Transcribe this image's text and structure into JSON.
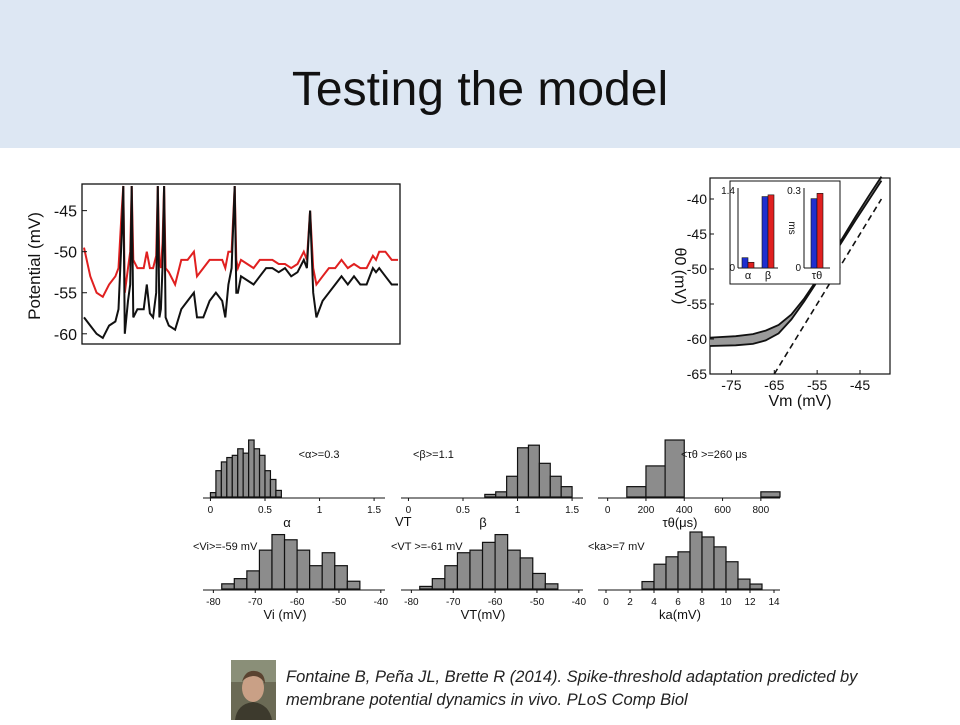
{
  "slide": {
    "title": "Testing the model",
    "citation_line1": "Fontaine B, Peña JL, Brette R (2014). Spike-threshold adaptation predicted by",
    "citation_line2": "membrane potential dynamics in vivo. PLoS Comp Biol"
  },
  "colors": {
    "band": "#dde7f3",
    "red": "#e02020",
    "black": "#111111",
    "blue": "#1f2fd0",
    "bar_gray": "#8c8c8c"
  },
  "chart_data": [
    {
      "id": "voltage-trace",
      "type": "line",
      "ylabel": "Potential (mV)",
      "ylim": [
        -61,
        -42
      ],
      "y_ticks": [
        "-45",
        "-50",
        "-55",
        "-60"
      ],
      "series": [
        {
          "color": "red",
          "points": [
            [
              0,
              -49.5
            ],
            [
              2,
              -53
            ],
            [
              4,
              -55
            ],
            [
              6,
              -55.5
            ],
            [
              8,
              -54
            ],
            [
              10,
              -53
            ],
            [
              11,
              -52
            ],
            [
              12,
              -45
            ],
            [
              12.5,
              -42
            ],
            [
              13,
              -55
            ],
            [
              14,
              -52
            ],
            [
              14.7,
              -50
            ],
            [
              15.2,
              -42
            ],
            [
              15.7,
              -51
            ],
            [
              17,
              -52
            ],
            [
              19,
              -52
            ],
            [
              20,
              -50
            ],
            [
              21,
              -52
            ],
            [
              22,
              -52
            ],
            [
              23,
              -50.5
            ],
            [
              23.5,
              -42
            ],
            [
              24,
              -51
            ],
            [
              24.5,
              -52
            ],
            [
              25,
              -49
            ],
            [
              25.5,
              -42
            ],
            [
              26,
              -52
            ],
            [
              27,
              -52.5
            ],
            [
              29,
              -54
            ],
            [
              31,
              -51
            ],
            [
              33,
              -51
            ],
            [
              35,
              -50
            ],
            [
              36,
              -53
            ],
            [
              38,
              -52
            ],
            [
              40,
              -51
            ],
            [
              42,
              -51
            ],
            [
              44,
              -51
            ],
            [
              45,
              -52
            ],
            [
              46,
              -50
            ],
            [
              47,
              -50
            ],
            [
              48,
              -42
            ],
            [
              48.5,
              -51
            ],
            [
              49,
              -52
            ],
            [
              50,
              -51
            ],
            [
              52,
              -51.5
            ],
            [
              54,
              -52
            ],
            [
              56,
              -51
            ],
            [
              58,
              -51
            ],
            [
              60,
              -51
            ],
            [
              62,
              -51.5
            ],
            [
              64,
              -51.5
            ],
            [
              66,
              -52
            ],
            [
              68,
              -51.5
            ],
            [
              70,
              -50
            ],
            [
              71,
              -51
            ],
            [
              72,
              -45
            ],
            [
              73,
              -52
            ],
            [
              74,
              -54
            ],
            [
              76,
              -53
            ],
            [
              78,
              -52
            ],
            [
              80,
              -52
            ],
            [
              82,
              -51
            ],
            [
              84,
              -52
            ],
            [
              86,
              -51.5
            ],
            [
              88,
              -52
            ],
            [
              90,
              -52
            ],
            [
              92,
              -50.5
            ],
            [
              93,
              -51
            ],
            [
              94,
              -50
            ],
            [
              96,
              -50
            ],
            [
              98,
              -51
            ],
            [
              100,
              -51
            ]
          ]
        },
        {
          "color": "black",
          "points": [
            [
              0,
              -58
            ],
            [
              2,
              -59
            ],
            [
              4,
              -60
            ],
            [
              6,
              -60.5
            ],
            [
              8,
              -59
            ],
            [
              10,
              -58.5
            ],
            [
              11,
              -57
            ],
            [
              12,
              -48
            ],
            [
              12.5,
              -42
            ],
            [
              13,
              -60
            ],
            [
              14,
              -56
            ],
            [
              14.7,
              -54
            ],
            [
              15.2,
              -42
            ],
            [
              15.7,
              -58
            ],
            [
              17,
              -57
            ],
            [
              19,
              -57
            ],
            [
              20,
              -54
            ],
            [
              21,
              -57.5
            ],
            [
              22,
              -58
            ],
            [
              23,
              -55
            ],
            [
              23.5,
              -42
            ],
            [
              24,
              -58
            ],
            [
              24.5,
              -57
            ],
            [
              25,
              -52
            ],
            [
              25.5,
              -42
            ],
            [
              26,
              -58
            ],
            [
              27,
              -59
            ],
            [
              29,
              -59.5
            ],
            [
              31,
              -57
            ],
            [
              33,
              -56
            ],
            [
              35,
              -55
            ],
            [
              36,
              -58
            ],
            [
              38,
              -58
            ],
            [
              40,
              -56
            ],
            [
              42,
              -55
            ],
            [
              44,
              -56
            ],
            [
              45,
              -58
            ],
            [
              46,
              -54
            ],
            [
              47,
              -52
            ],
            [
              48,
              -42
            ],
            [
              48.5,
              -55
            ],
            [
              49,
              -55
            ],
            [
              50,
              -53
            ],
            [
              52,
              -53.5
            ],
            [
              54,
              -54
            ],
            [
              56,
              -53
            ],
            [
              58,
              -52
            ],
            [
              60,
              -52
            ],
            [
              62,
              -52.5
            ],
            [
              64,
              -52
            ],
            [
              66,
              -53
            ],
            [
              68,
              -52.5
            ],
            [
              70,
              -51
            ],
            [
              71,
              -52
            ],
            [
              72,
              -45
            ],
            [
              73,
              -55
            ],
            [
              74,
              -58
            ],
            [
              76,
              -56
            ],
            [
              78,
              -55
            ],
            [
              80,
              -54
            ],
            [
              82,
              -53
            ],
            [
              84,
              -54
            ],
            [
              86,
              -53
            ],
            [
              88,
              -54
            ],
            [
              90,
              -54
            ],
            [
              92,
              -52
            ],
            [
              93,
              -52.5
            ],
            [
              94,
              -52
            ],
            [
              96,
              -53
            ],
            [
              98,
              -54
            ],
            [
              100,
              -54
            ]
          ]
        }
      ]
    },
    {
      "id": "threshold-vs-vm",
      "type": "line",
      "xlabel": "Vm (mV)",
      "ylabel": "θ0 (mV)",
      "xlim": [
        -80,
        -38
      ],
      "ylim": [
        -65,
        -37
      ],
      "x_ticks": [
        "-75",
        "-65",
        "-55",
        "-45"
      ],
      "y_ticks": [
        "-40",
        "-45",
        "-50",
        "-55",
        "-60",
        "-65"
      ],
      "lines": [
        {
          "name": "upper",
          "points": [
            [
              -80,
              -59.8
            ],
            [
              -74,
              -59.6
            ],
            [
              -70,
              -59.3
            ],
            [
              -67,
              -58.8
            ],
            [
              -64,
              -58
            ],
            [
              -61,
              -56.5
            ],
            [
              -58,
              -54.2
            ],
            [
              -55,
              -51.5
            ],
            [
              -52,
              -48.5
            ],
            [
              -49,
              -45.5
            ],
            [
              -46,
              -42.5
            ],
            [
              -43,
              -39.6
            ],
            [
              -40,
              -36.8
            ]
          ]
        },
        {
          "name": "lower",
          "points": [
            [
              -80,
              -61
            ],
            [
              -74,
              -60.9
            ],
            [
              -70,
              -60.7
            ],
            [
              -67,
              -60.2
            ],
            [
              -64,
              -59.2
            ],
            [
              -61,
              -57.2
            ],
            [
              -58,
              -54.6
            ],
            [
              -55,
              -51.8
            ],
            [
              -52,
              -48.8
            ],
            [
              -49,
              -45.9
            ],
            [
              -46,
              -43
            ],
            [
              -43,
              -40.2
            ],
            [
              -40,
              -37.4
            ]
          ]
        },
        {
          "name": "diagonal",
          "dashed": true,
          "points": [
            [
              -65,
              -65
            ],
            [
              -40,
              -40
            ]
          ]
        }
      ]
    },
    {
      "id": "inset-alpha-beta",
      "type": "bar",
      "y_ticks": [
        "1.4",
        "0"
      ],
      "categories": [
        "α",
        "β"
      ],
      "series": [
        {
          "color": "blue",
          "values": [
            0.18,
            1.25
          ]
        },
        {
          "color": "red",
          "values": [
            0.1,
            1.28
          ]
        }
      ],
      "ylim": [
        0,
        1.4
      ]
    },
    {
      "id": "inset-tau",
      "type": "bar",
      "ylabel": "ms",
      "y_ticks": [
        "0.3",
        "0"
      ],
      "categories": [
        "τθ"
      ],
      "series": [
        {
          "color": "blue",
          "values": [
            0.26
          ]
        },
        {
          "color": "red",
          "values": [
            0.28
          ]
        }
      ],
      "ylim": [
        0,
        0.3
      ]
    },
    {
      "id": "hist-alpha",
      "type": "bar",
      "annotation": "<α>=0.3",
      "xlabel": "α",
      "xlim": [
        -0.05,
        1.6
      ],
      "x_ticks": [
        0,
        0.5,
        1,
        1.5
      ],
      "x_tick_labels": [
        "0",
        "0.5",
        "1",
        "1.5"
      ],
      "bins": [
        0,
        0.05,
        0.1,
        0.15,
        0.2,
        0.25,
        0.3,
        0.35,
        0.4,
        0.45,
        0.5,
        0.55,
        0.6,
        0.65,
        0.7
      ],
      "counts": [
        2,
        12,
        16,
        18,
        19,
        22,
        20,
        26,
        22,
        19,
        12,
        8,
        3,
        0
      ]
    },
    {
      "id": "hist-beta",
      "type": "bar",
      "annotation": "<β>=1.1",
      "xlabel": "β",
      "xlim": [
        -0.05,
        1.6
      ],
      "x_ticks": [
        0,
        0.5,
        1,
        1.5
      ],
      "x_tick_labels": [
        "0",
        "0.5",
        "1",
        "1.5"
      ],
      "bins": [
        0.7,
        0.8,
        0.9,
        1.0,
        1.1,
        1.2,
        1.3,
        1.4,
        1.5,
        1.6
      ],
      "counts": [
        1,
        2,
        8,
        19,
        20,
        13,
        8,
        4,
        0
      ]
    },
    {
      "id": "hist-tau",
      "type": "bar",
      "annotation": "<τθ >=260 μs",
      "xlabel": "τθ(μs)",
      "xlim": [
        -40,
        900
      ],
      "x_ticks": [
        0,
        200,
        400,
        600,
        800
      ],
      "x_tick_labels": [
        "0",
        "200",
        "400",
        "600",
        "800"
      ],
      "bins": [
        100,
        200,
        300,
        400,
        500,
        600,
        700,
        800,
        900
      ],
      "counts": [
        4,
        12,
        22,
        0,
        0,
        0,
        0,
        2
      ]
    },
    {
      "id": "hist-vi",
      "type": "bar",
      "annotation": "<Vi>=-59 mV",
      "xlabel": "Vi (mV)",
      "xlim": [
        -82,
        -39
      ],
      "x_ticks": [
        -80,
        -70,
        -60,
        -50,
        -40
      ],
      "x_tick_labels": [
        "-80",
        "-70",
        "-60",
        "-50",
        "-40"
      ],
      "bins": [
        -78,
        -75,
        -72,
        -69,
        -66,
        -63,
        -60,
        -57,
        -54,
        -51,
        -48,
        -45
      ],
      "counts": [
        2,
        4,
        7,
        15,
        21,
        19,
        15,
        9,
        14,
        9,
        3
      ]
    },
    {
      "id": "hist-vt",
      "type": "bar",
      "annotation": "<VT >=-61 mV",
      "top_label": "VT",
      "xlabel": "VT(mV)",
      "xlim": [
        -82,
        -39
      ],
      "x_ticks": [
        -80,
        -70,
        -60,
        -50,
        -40
      ],
      "x_tick_labels": [
        "-80",
        "-70",
        "-60",
        "-50",
        "-40"
      ],
      "bins": [
        -78,
        -75,
        -72,
        -69,
        -66,
        -63,
        -60,
        -57,
        -54,
        -51,
        -48,
        -45
      ],
      "counts": [
        1,
        4,
        9,
        14,
        15,
        18,
        21,
        15,
        12,
        6,
        2
      ]
    },
    {
      "id": "hist-ka",
      "type": "bar",
      "annotation": "<ka>=7 mV",
      "xlabel": "ka(mV)",
      "xlim": [
        -0.5,
        14.5
      ],
      "x_ticks": [
        0,
        2,
        4,
        6,
        8,
        10,
        12,
        14
      ],
      "x_tick_labels": [
        "0",
        "2",
        "4",
        "6",
        "8",
        "10",
        "12",
        "14"
      ],
      "bins": [
        3,
        4,
        5,
        6,
        7,
        8,
        9,
        10,
        11,
        12,
        13
      ],
      "counts": [
        3,
        10,
        13,
        15,
        23,
        21,
        17,
        11,
        4,
        2
      ]
    }
  ]
}
